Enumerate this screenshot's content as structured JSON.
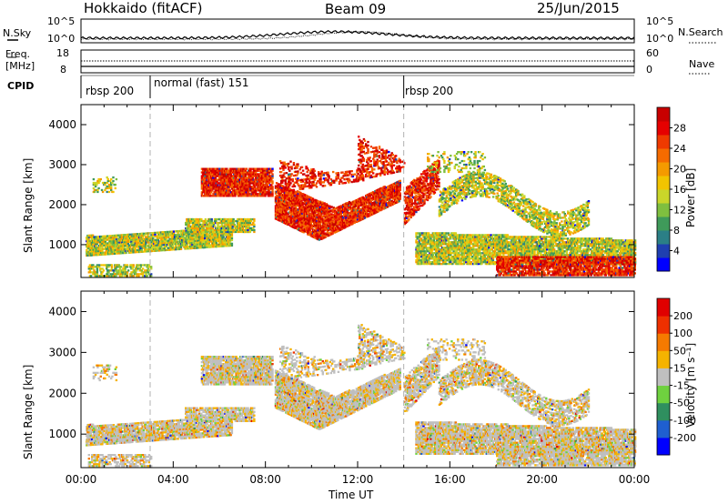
{
  "header": {
    "radar": "Hokkaido (fitACF)",
    "beam": "Beam 09",
    "date": "25/Jun/2015"
  },
  "top_labels": {
    "nsky": "N.Sky",
    "nsearch": "N.Search",
    "freq_line1": "Freq.",
    "freq_line2": "[MHz]",
    "nave": "Nave",
    "cpid": "CPID",
    "left_ticks_noise": [
      "10^5",
      "10^0"
    ],
    "right_ticks_noise": [
      "10^5",
      "10^0"
    ],
    "left_ticks_freq": [
      "18",
      "8"
    ],
    "right_ticks_nave": [
      "60",
      "0"
    ]
  },
  "cpid_segments": [
    {
      "label": "rbsp 200",
      "start_hour": 0.0
    },
    {
      "label": "normal (fast) 151",
      "start_hour": 3.0
    },
    {
      "label": "rbsp 200",
      "start_hour": 14.0
    }
  ],
  "axis": {
    "xlabel": "Time UT",
    "x_ticks": [
      "00:00",
      "04:00",
      "08:00",
      "12:00",
      "16:00",
      "20:00",
      "00:00"
    ],
    "y_ticks": [
      "1000",
      "2000",
      "3000",
      "4000"
    ],
    "ylabel": "Slant Range [km]"
  },
  "colorbars": {
    "power": {
      "label": "Power [dB]",
      "ticks": [
        "28",
        "24",
        "20",
        "16",
        "12",
        "8",
        "4"
      ],
      "colors": [
        "#0000ff",
        "#1f3fb0",
        "#2b7f86",
        "#3f9a5a",
        "#7fbf3f",
        "#c9d62a",
        "#f2c400",
        "#f59a00",
        "#f56b00",
        "#ef3a00",
        "#e60000",
        "#c80000"
      ]
    },
    "velocity": {
      "label": "Velocity [m s⁻¹]",
      "ticks": [
        "200",
        "100",
        "50",
        "15",
        "-15",
        "-50",
        "-100",
        "-200"
      ],
      "colors": [
        "#0000ff",
        "#1f5fd0",
        "#2f8f5f",
        "#6fd13f",
        "#bfbfbf",
        "#f5b300",
        "#f57a00",
        "#ee3000",
        "#e00000"
      ]
    }
  },
  "chart_data": {
    "type": "heatmap",
    "title": "Hokkaido (fitACF) Beam 09 25/Jun/2015",
    "xlabel": "Time UT",
    "ylabel": "Slant Range [km]",
    "xlim": [
      0,
      24
    ],
    "ylim": [
      180,
      4500
    ],
    "panels": [
      "Power [dB]",
      "Velocity [m s⁻¹]"
    ]
  }
}
